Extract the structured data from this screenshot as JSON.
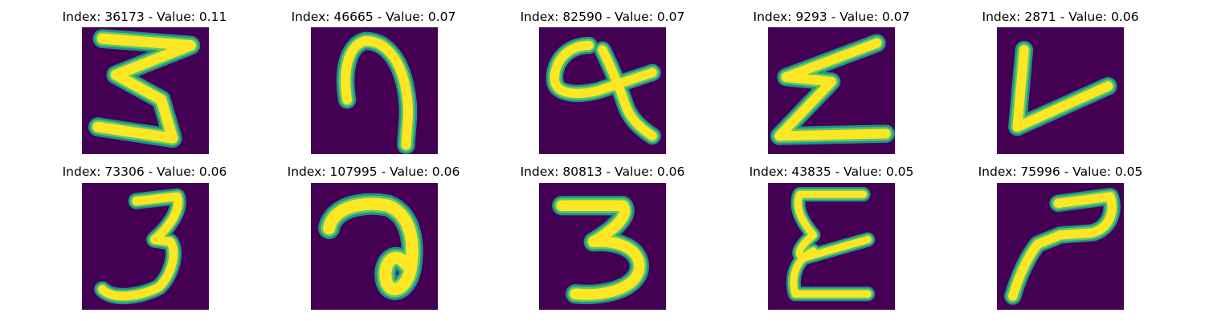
{
  "colors": {
    "background": "#440154",
    "stroke_edge": "#21918c",
    "stroke_mid": "#5ec962",
    "stroke_core": "#fde725"
  },
  "panels": [
    {
      "title": "Index: 36173 - Value: 0.11",
      "glyph": "3"
    },
    {
      "title": "Index: 46665 - Value: 0.07",
      "glyph": "7"
    },
    {
      "title": "Index: 82590 - Value: 0.07",
      "glyph": "a"
    },
    {
      "title": "Index: 9293 - Value: 0.07",
      "glyph": "z"
    },
    {
      "title": "Index: 2871 - Value: 0.06",
      "glyph": "v"
    },
    {
      "title": "Index: 73306 - Value: 0.06",
      "glyph": "3"
    },
    {
      "title": "Index: 107995 - Value: 0.06",
      "glyph": "a"
    },
    {
      "title": "Index: 80813 - Value: 0.06",
      "glyph": "3"
    },
    {
      "title": "Index: 43835 - Value: 0.05",
      "glyph": "e"
    },
    {
      "title": "Index: 75996 - Value: 0.05",
      "glyph": "2"
    }
  ]
}
